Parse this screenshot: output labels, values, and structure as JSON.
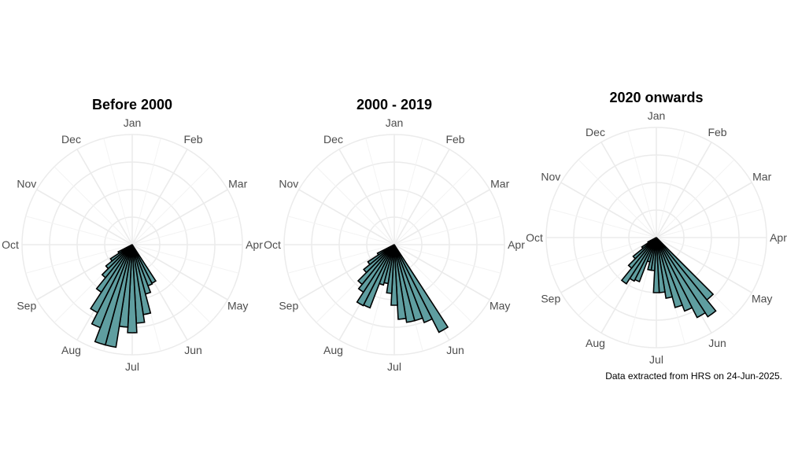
{
  "figure": {
    "caption": "Data extracted from HRS on 24-Jun-2025.",
    "bar_color": "#5f9ea0",
    "grid_color": "#ebebeb"
  },
  "chart_data": [
    {
      "type": "polar-bar",
      "title": "Before 2000",
      "theta_labels": [
        "Jan",
        "Feb",
        "Mar",
        "Apr",
        "May",
        "Jun",
        "Jul",
        "Aug",
        "Sep",
        "Oct",
        "Nov",
        "Dec"
      ],
      "angles_deg": [
        150,
        156,
        162,
        168,
        174,
        180,
        186,
        192,
        198,
        204,
        210,
        216,
        222,
        228,
        234,
        240
      ],
      "values": [
        55,
        56,
        65,
        90,
        100,
        112,
        105,
        132,
        132,
        113,
        97,
        72,
        54,
        43,
        33,
        20
      ],
      "rmax": 140
    },
    {
      "type": "polar-bar",
      "title": "2000 - 2019",
      "theta_labels": [
        "Jan",
        "Feb",
        "Mar",
        "Apr",
        "May",
        "Jun",
        "Jul",
        "Aug",
        "Sep",
        "Oct",
        "Nov",
        "Dec"
      ],
      "angles_deg": [
        150,
        156,
        162,
        168,
        174,
        180,
        186,
        192,
        198,
        204,
        210,
        216,
        222,
        228,
        234,
        240
      ],
      "values": [
        125,
        106,
        100,
        100,
        95,
        77,
        62,
        50,
        53,
        86,
        87,
        72,
        65,
        50,
        40,
        24
      ],
      "rmax": 140
    },
    {
      "type": "polar-bar",
      "title": "2020 onwards",
      "theta_labels": [
        "Jan",
        "Feb",
        "Mar",
        "Apr",
        "May",
        "Jun",
        "Jul",
        "Aug",
        "Sep",
        "Oct",
        "Nov",
        "Dec"
      ],
      "angles_deg": [
        138,
        144,
        150,
        156,
        162,
        168,
        174,
        180,
        186,
        192,
        198,
        204,
        210,
        216,
        222,
        228,
        234,
        240
      ],
      "values": [
        102,
        120,
        114,
        100,
        92,
        78,
        70,
        70,
        42,
        42,
        32,
        60,
        62,
        70,
        50,
        38,
        22,
        12
      ],
      "rmax": 140
    }
  ]
}
